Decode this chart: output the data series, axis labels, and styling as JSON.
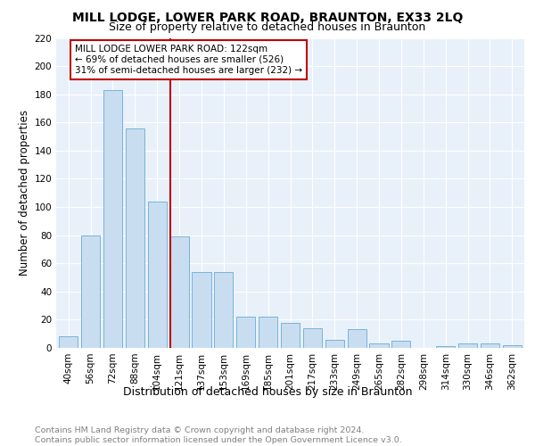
{
  "title": "MILL LODGE, LOWER PARK ROAD, BRAUNTON, EX33 2LQ",
  "subtitle": "Size of property relative to detached houses in Braunton",
  "xlabel": "Distribution of detached houses by size in Braunton",
  "ylabel": "Number of detached properties",
  "categories": [
    "40sqm",
    "56sqm",
    "72sqm",
    "88sqm",
    "104sqm",
    "121sqm",
    "137sqm",
    "153sqm",
    "169sqm",
    "185sqm",
    "201sqm",
    "217sqm",
    "233sqm",
    "249sqm",
    "265sqm",
    "282sqm",
    "298sqm",
    "314sqm",
    "330sqm",
    "346sqm",
    "362sqm"
  ],
  "values": [
    8,
    80,
    183,
    156,
    104,
    79,
    54,
    54,
    22,
    22,
    18,
    14,
    6,
    13,
    3,
    5,
    0,
    1,
    3,
    3,
    2
  ],
  "bar_color": "#c9ddf0",
  "bar_edge_color": "#6aaad4",
  "vline_x_index": 5,
  "vline_color": "#c00000",
  "annotation_text": "MILL LODGE LOWER PARK ROAD: 122sqm\n← 69% of detached houses are smaller (526)\n31% of semi-detached houses are larger (232) →",
  "annotation_box_color": "white",
  "annotation_box_edge_color": "#c00000",
  "ylim": [
    0,
    220
  ],
  "yticks": [
    0,
    20,
    40,
    60,
    80,
    100,
    120,
    140,
    160,
    180,
    200,
    220
  ],
  "footer_text": "Contains HM Land Registry data © Crown copyright and database right 2024.\nContains public sector information licensed under the Open Government Licence v3.0.",
  "title_fontsize": 10,
  "subtitle_fontsize": 9,
  "xlabel_fontsize": 9,
  "ylabel_fontsize": 8.5,
  "tick_fontsize": 7.5,
  "annot_fontsize": 7.5,
  "footer_fontsize": 6.8,
  "bg_color": "#e8f1fa",
  "grid_color": "white"
}
